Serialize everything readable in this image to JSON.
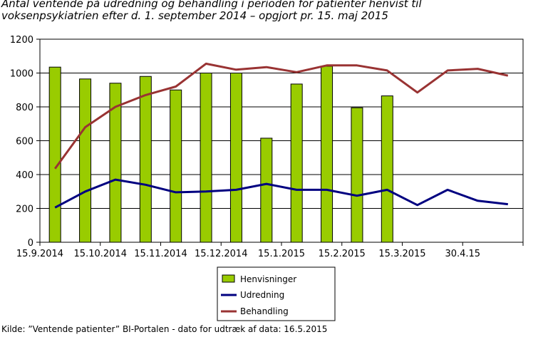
{
  "title_lines": [
    "Antal ventende på udredning og behandling i perioden for patienter henvist til",
    "voksenpsykiatrien efter d. 1. september 2014 – opgjort pr. 15. maj 2015"
  ],
  "source": "Kilde: ”Ventende patienter” BI-Portalen - dato for udtræk af data: 16.5.2015",
  "colors": {
    "bars": "#99cc00",
    "udredning": "#000080",
    "behandling": "#993333",
    "grid": "#000000"
  },
  "chart_data": {
    "type": "bar+line",
    "x_tick_labels": [
      "15.9.2014",
      "15.10.2014",
      "15.11.2014",
      "15.12.2014",
      "15.1.2015",
      "15.2.2015",
      "15.3.2015",
      "30.4.15"
    ],
    "ylim": [
      0,
      1200
    ],
    "yticks": [
      0,
      200,
      400,
      600,
      800,
      1000,
      1200
    ],
    "grid": true,
    "legend_position": "bottom-center",
    "series": [
      {
        "name": "Henvisninger",
        "kind": "bar",
        "values": [
          1035,
          965,
          940,
          980,
          900,
          1000,
          1000,
          615,
          935,
          1040,
          795,
          865
        ]
      },
      {
        "name": "Udredning",
        "kind": "line",
        "values": [
          205,
          300,
          370,
          340,
          295,
          300,
          310,
          345,
          310,
          310,
          275,
          310,
          220,
          310,
          245,
          225
        ]
      },
      {
        "name": "Behandling",
        "kind": "line",
        "values": [
          435,
          680,
          800,
          870,
          920,
          1055,
          1020,
          1035,
          1005,
          1045,
          1045,
          1015,
          885,
          1015,
          1025,
          985
        ]
      }
    ]
  }
}
